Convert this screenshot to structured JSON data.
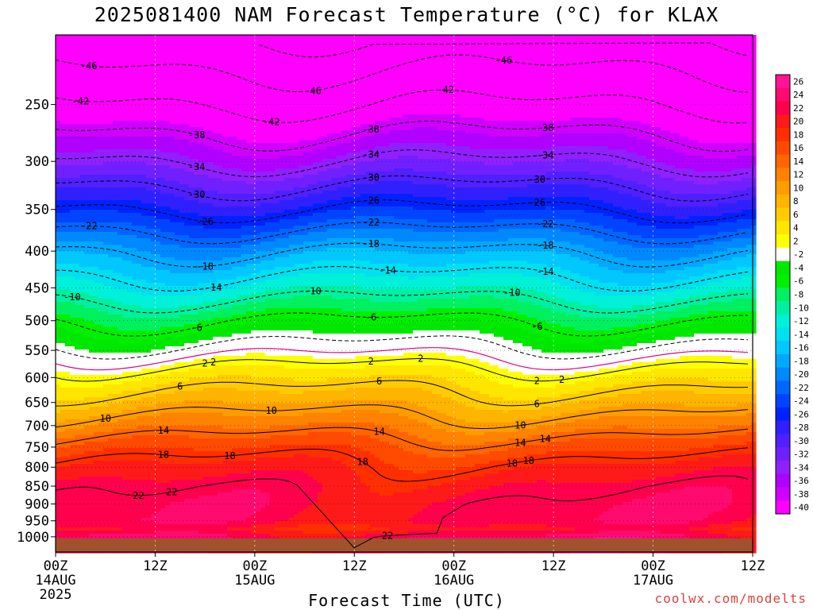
{
  "title": "2025081400 NAM Forecast Temperature (°C) for KLAX",
  "footer": "coolwx.com/modelts",
  "chart_data": {
    "type": "heatmap",
    "title": "2025081400 NAM Forecast Temperature (°C) for KLAX",
    "xlabel": "Forecast Time (UTC)",
    "ylabel": "",
    "x_hours": [
      0,
      84
    ],
    "x_ticks": [
      {
        "h": 0,
        "label": "00Z",
        "sub": [
          "14AUG",
          "2025"
        ]
      },
      {
        "h": 12,
        "label": "12Z",
        "sub": []
      },
      {
        "h": 24,
        "label": "00Z",
        "sub": [
          "15AUG"
        ]
      },
      {
        "h": 36,
        "label": "12Z",
        "sub": []
      },
      {
        "h": 48,
        "label": "00Z",
        "sub": [
          "16AUG"
        ]
      },
      {
        "h": 60,
        "label": "12Z",
        "sub": []
      },
      {
        "h": 72,
        "label": "00Z",
        "sub": [
          "17AUG"
        ]
      },
      {
        "h": 84,
        "label": "12Z",
        "sub": []
      }
    ],
    "y_axis_scale": "log",
    "y_range_hpa": [
      1050,
      200
    ],
    "y_ticks": [
      "250",
      "300",
      "350",
      "400",
      "450",
      "500",
      "550",
      "600",
      "650",
      "700",
      "750",
      "800",
      "850",
      "900",
      "950",
      "1000"
    ],
    "colorbar": {
      "labels": [
        "26",
        "24",
        "22",
        "20",
        "18",
        "16",
        "14",
        "12",
        "10",
        "8",
        "6",
        "4",
        "2",
        "-2",
        "-4",
        "-6",
        "-8",
        "-10",
        "-12",
        "-14",
        "-16",
        "-18",
        "-20",
        "-22",
        "-24",
        "-26",
        "-28",
        "-30",
        "-32",
        "-34",
        "-36",
        "-38",
        "-40"
      ],
      "colors": [
        "#ff1493",
        "#ff0a6e",
        "#ff004c",
        "#ff1a1a",
        "#ff2f00",
        "#ff4a00",
        "#ff6600",
        "#ff8200",
        "#ff9c00",
        "#ffb400",
        "#ffcc00",
        "#ffe600",
        "#ffff00",
        "#ffffff",
        "#00e800",
        "#00f000",
        "#00f060",
        "#00f0a0",
        "#00f0d8",
        "#00e0f0",
        "#00c8ff",
        "#00a8ff",
        "#0088ff",
        "#0066ff",
        "#0044ff",
        "#0022ff",
        "#3020ff",
        "#5020ff",
        "#7020ff",
        "#9020ff",
        "#b000ff",
        "#d000ff",
        "#ff00ff"
      ]
    },
    "isotherm_profile": [
      {
        "p": 1000,
        "t": 23
      },
      {
        "p": 975,
        "t": 20
      },
      {
        "p": 950,
        "t": 22
      },
      {
        "p": 900,
        "t": 22
      },
      {
        "p": 850,
        "t": 21
      },
      {
        "p": 800,
        "t": 19
      },
      {
        "p": 750,
        "t": 16
      },
      {
        "p": 700,
        "t": 12
      },
      {
        "p": 650,
        "t": 8
      },
      {
        "p": 600,
        "t": 4
      },
      {
        "p": 550,
        "t": -1
      },
      {
        "p": 500,
        "t": -6
      },
      {
        "p": 450,
        "t": -12
      },
      {
        "p": 400,
        "t": -18
      },
      {
        "p": 350,
        "t": -26
      },
      {
        "p": 300,
        "t": -34
      },
      {
        "p": 250,
        "t": -42
      },
      {
        "p": 200,
        "t": -50
      }
    ],
    "contour_labels": [
      {
        "t": "-46",
        "h": [
          4,
          31,
          54
        ]
      },
      {
        "t": "-42",
        "h": [
          3,
          26,
          47
        ]
      },
      {
        "t": "-38",
        "h": [
          17,
          38,
          59
        ]
      },
      {
        "t": "-34",
        "h": [
          17,
          38,
          59
        ]
      },
      {
        "t": "-30",
        "h": [
          17,
          38,
          58
        ]
      },
      {
        "t": "-26",
        "h": [
          18,
          38,
          58
        ]
      },
      {
        "t": "-22",
        "h": [
          4,
          38,
          59
        ]
      },
      {
        "t": "-18",
        "h": [
          18,
          38,
          59
        ]
      },
      {
        "t": "-14",
        "h": [
          19,
          40,
          59
        ]
      },
      {
        "t": "-10",
        "h": [
          2,
          31,
          55
        ]
      },
      {
        "t": "-6",
        "h": [
          17,
          38,
          58
        ]
      },
      {
        "t": "2",
        "h": [
          19,
          44,
          61
        ]
      },
      {
        "t": "2",
        "h": [
          18,
          38,
          58
        ]
      },
      {
        "t": "6",
        "h": [
          15,
          39,
          58
        ]
      },
      {
        "t": "10",
        "h": [
          6,
          26,
          56
        ]
      },
      {
        "t": "14",
        "h": [
          13,
          39,
          59
        ]
      },
      {
        "t": "18",
        "h": [
          13,
          37,
          57
        ]
      },
      {
        "t": "22",
        "h": [
          14,
          31,
          40
        ]
      },
      {
        "t": "22",
        "h": [
          10
        ]
      },
      {
        "t": "18",
        "h": [
          21,
          55
        ]
      },
      {
        "t": "14",
        "h": [
          56
        ]
      }
    ]
  }
}
